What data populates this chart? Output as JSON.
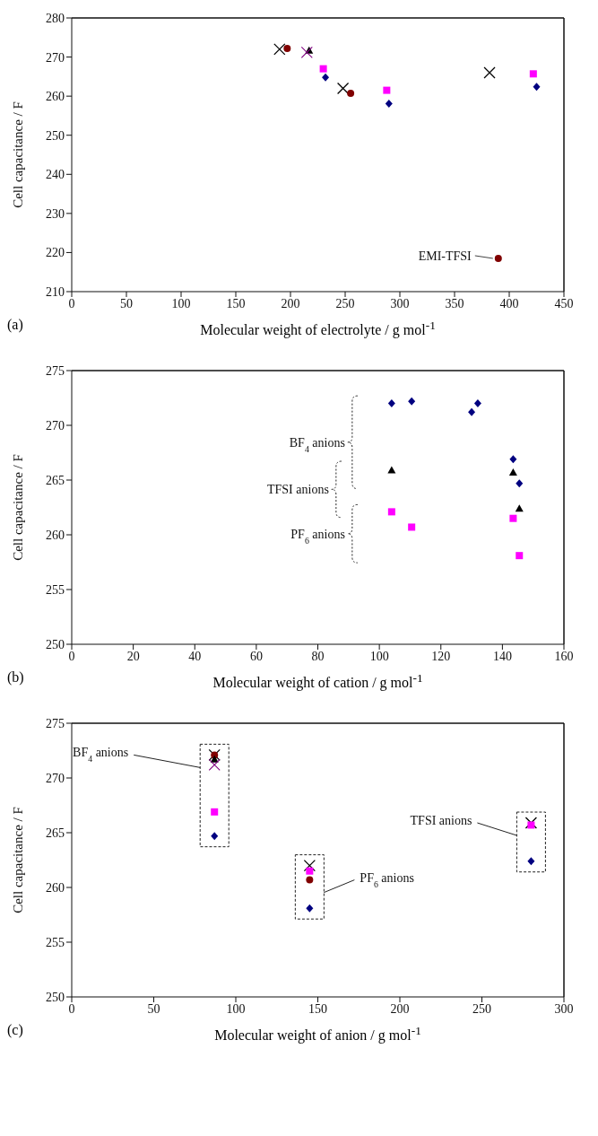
{
  "chart_data": [
    {
      "type": "scatter",
      "xlabel": "Molecular weight of electrolyte / g mol$^{-1}$",
      "ylabel": "Cell capacitance / F",
      "xlim": [
        0,
        450
      ],
      "ylim": [
        210,
        280
      ],
      "xticks": [
        0,
        50,
        100,
        150,
        200,
        250,
        300,
        350,
        400,
        450
      ],
      "yticks": [
        210,
        220,
        230,
        240,
        250,
        260,
        270,
        280
      ],
      "series": [
        {
          "color": "#000000",
          "marker": "cross",
          "x": [
            190,
            248,
            382
          ],
          "values": [
            272,
            262,
            266
          ]
        },
        {
          "color": "#800000",
          "marker": "circle",
          "x": [
            197,
            255,
            390
          ],
          "values": [
            272.2,
            260.7,
            218.5
          ]
        },
        {
          "color": "#000000",
          "marker": "triangle",
          "x": [
            217
          ],
          "values": [
            271.7
          ]
        },
        {
          "color": "#800080",
          "marker": "cross",
          "x": [
            215
          ],
          "values": [
            271.2
          ]
        },
        {
          "color": "#ff00ff",
          "marker": "square",
          "x": [
            230,
            288,
            422
          ],
          "values": [
            267,
            261.5,
            265.7
          ]
        },
        {
          "color": "#000080",
          "marker": "diamond",
          "x": [
            232,
            290,
            425
          ],
          "values": [
            264.8,
            258.1,
            262.4
          ]
        }
      ],
      "annotations": [
        {
          "text": "EMI-TFSI",
          "x": 390,
          "y": 218.5
        },
        "(a)"
      ]
    },
    {
      "type": "scatter",
      "xlabel": "Molecular weight of cation / g mol$^{-1}$",
      "ylabel": "Cell capacitance / F",
      "xlim": [
        0,
        160
      ],
      "ylim": [
        250,
        275
      ],
      "xticks": [
        0,
        20,
        40,
        60,
        80,
        100,
        120,
        140,
        160
      ],
      "yticks": [
        250,
        255,
        260,
        265,
        270,
        275
      ],
      "series": [
        {
          "color": "#000080",
          "marker": "diamond",
          "x": [
            104,
            110.5,
            130,
            132,
            143.5,
            145.5
          ],
          "values": [
            272,
            272.2,
            271.2,
            272,
            266.9,
            264.7
          ]
        },
        {
          "color": "#000000",
          "marker": "triangle",
          "x": [
            104,
            143.5,
            145.5
          ],
          "values": [
            265.9,
            265.7,
            262.4
          ]
        },
        {
          "color": "#ff00ff",
          "marker": "square",
          "x": [
            104,
            110.5,
            143.5,
            145.5
          ],
          "values": [
            262.1,
            260.7,
            261.5,
            258.1
          ]
        }
      ],
      "annotations": [
        "BF$_{4}$ anions",
        "TFSI anions",
        "PF$_{6}$ anions",
        "(b)"
      ]
    },
    {
      "type": "scatter",
      "xlabel": "Molecular weight of anion / g mol$^{-1}$",
      "ylabel": "Cell capacitance / F",
      "xlim": [
        0,
        300
      ],
      "ylim": [
        250,
        275
      ],
      "xticks": [
        0,
        50,
        100,
        150,
        200,
        250,
        300
      ],
      "yticks": [
        250,
        255,
        260,
        265,
        270,
        275
      ],
      "series": [
        {
          "color": "#000000",
          "marker": "cross",
          "x": [
            87,
            145,
            280
          ],
          "values": [
            272.1,
            262,
            265.9
          ]
        },
        {
          "color": "#800000",
          "marker": "circle",
          "x": [
            87,
            145
          ],
          "values": [
            272.1,
            260.7
          ]
        },
        {
          "color": "#000000",
          "marker": "triangle",
          "x": [
            87
          ],
          "values": [
            271.7
          ]
        },
        {
          "color": "#800080",
          "marker": "cross",
          "x": [
            87
          ],
          "values": [
            271.2
          ]
        },
        {
          "color": "#ff00ff",
          "marker": "square",
          "x": [
            87,
            145,
            280
          ],
          "values": [
            266.9,
            261.5,
            265.7
          ]
        },
        {
          "color": "#000080",
          "marker": "diamond",
          "x": [
            87,
            145,
            280
          ],
          "values": [
            264.7,
            258.1,
            262.4
          ]
        }
      ],
      "annotations": [
        "BF$_{4}$ anions",
        "PF$_{6}$ anions",
        "TFSI anions",
        "(c)"
      ]
    }
  ]
}
